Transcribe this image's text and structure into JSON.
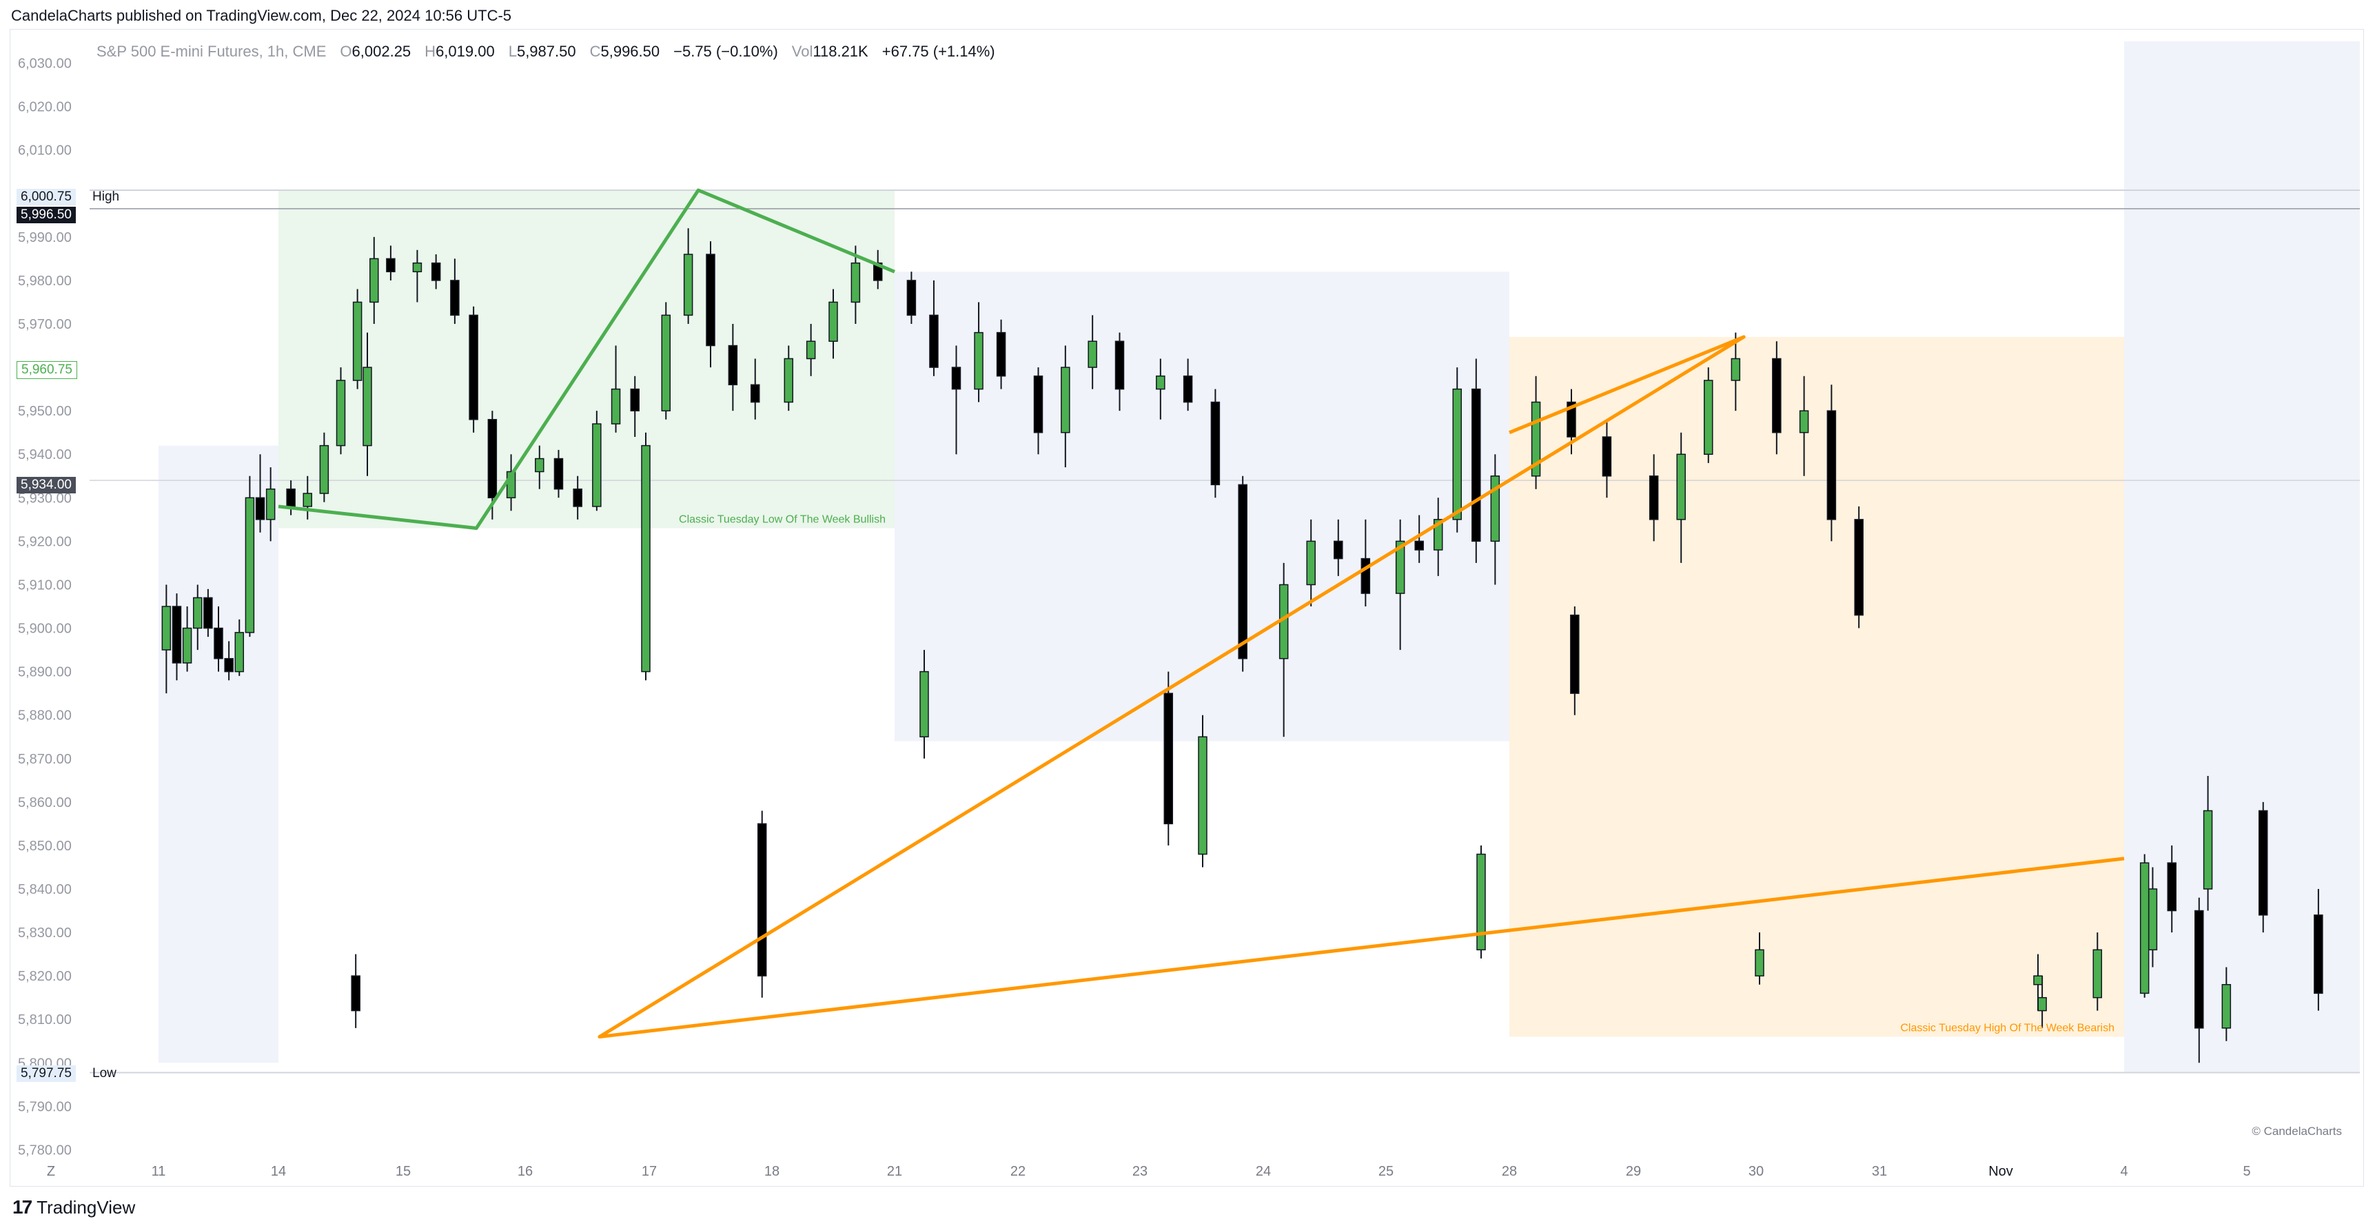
{
  "header": {
    "publisher_line": "CandelaCharts published on TradingView.com, Dec 22, 2024 10:56 UTC-5"
  },
  "legend": {
    "symbol": "S&P 500 E-mini Futures, 1h, CME",
    "o_label": "O",
    "o_value": "6,002.25",
    "h_label": "H",
    "h_value": "6,019.00",
    "l_label": "L",
    "l_value": "5,987.50",
    "c_label": "C",
    "c_value": "5,996.50",
    "change": "−5.75 (−0.10%)",
    "vol_label": "Vol",
    "vol_value": "118.21K",
    "vol_change": "+67.75 (+1.14%)"
  },
  "levels": {
    "high_value": "6,000.75",
    "high_label": "High",
    "last_value": "5,996.50",
    "green_value": "5,960.75",
    "mid_value": "5,934.00",
    "low_value": "5,797.75",
    "low_label": "Low"
  },
  "annotations": {
    "bullish_label": "Classic Tuesday Low Of The Week Bullish",
    "bearish_label": "Classic Tuesday High Of The Week Bearish",
    "copyright": "© CandelaCharts"
  },
  "footer": {
    "brand": "TradingView",
    "logo_glyph": "17"
  },
  "colors": {
    "up": "#4caf50",
    "down": "#000000",
    "bull_zone": "#4caf50",
    "bear_zone": "#ff9800",
    "neutral_zone": "#f0f3fa"
  },
  "chart_data": {
    "type": "candlestick",
    "title": "S&P 500 E-mini Futures, 1h, CME",
    "y_ticks": [
      "5,780.00",
      "5,790.00",
      "5,800.00",
      "5,810.00",
      "5,820.00",
      "5,830.00",
      "5,840.00",
      "5,850.00",
      "5,860.00",
      "5,870.00",
      "5,880.00",
      "5,890.00",
      "5,900.00",
      "5,910.00",
      "5,920.00",
      "5,930.00",
      "5,940.00",
      "5,950.00",
      "5,960.00",
      "5,970.00",
      "5,980.00",
      "5,990.00",
      "6,000.00",
      "6,010.00",
      "6,020.00",
      "6,030.00"
    ],
    "y_tick_values": [
      5780,
      5790,
      5800,
      5810,
      5820,
      5830,
      5840,
      5850,
      5860,
      5870,
      5880,
      5890,
      5900,
      5910,
      5920,
      5930,
      5940,
      5950,
      5960,
      5970,
      5980,
      5990,
      6000,
      6010,
      6020,
      6030
    ],
    "x_labels": [
      "Z",
      "11",
      "14",
      "15",
      "16",
      "17",
      "18",
      "21",
      "22",
      "23",
      "24",
      "25",
      "28",
      "29",
      "30",
      "31",
      "Nov",
      "4",
      "5"
    ],
    "ylim": [
      5775,
      6035
    ],
    "session_boxes": [
      {
        "kind": "neutral",
        "from_day": "11",
        "to_day": "14",
        "low": 5800,
        "high": 5942
      },
      {
        "kind": "bullish",
        "from_day": "14",
        "to_day": "21",
        "low": 5923,
        "high": 6000.75
      },
      {
        "kind": "neutral",
        "from_day": "21",
        "to_day": "28",
        "low": 5874,
        "high": 5982
      },
      {
        "kind": "bearish",
        "from_day": "28",
        "to_day": "4",
        "low": 5806,
        "high": 5967
      },
      {
        "kind": "neutral",
        "from_day": "4",
        "to_day": "end",
        "low": 5797.75,
        "high": 6035
      }
    ],
    "bullish_pattern": [
      [
        "14",
        5928
      ],
      [
        "15.6",
        5923
      ],
      [
        "17.4",
        6000.75
      ],
      [
        "21",
        5982
      ]
    ],
    "bearish_pattern": [
      [
        "28",
        5945
      ],
      [
        "29.9",
        5967
      ],
      [
        "31.7",
        5806
      ],
      [
        "4",
        5847
      ]
    ],
    "candles": [
      [
        "11",
        5895,
        5910,
        5885,
        5905
      ],
      [
        "11",
        5905,
        5908,
        5888,
        5892
      ],
      [
        "11",
        5892,
        5905,
        5890,
        5900
      ],
      [
        "11",
        5900,
        5910,
        5895,
        5907
      ],
      [
        "11",
        5907,
        5909,
        5898,
        5900
      ],
      [
        "11",
        5900,
        5905,
        5890,
        5893
      ],
      [
        "11",
        5893,
        5897,
        5888,
        5890
      ],
      [
        "11",
        5890,
        5902,
        5889,
        5899
      ],
      [
        "11",
        5899,
        5935,
        5898,
        5930
      ],
      [
        "11",
        5930,
        5940,
        5922,
        5925
      ],
      [
        "11",
        5925,
        5937,
        5920,
        5932
      ],
      [
        "14",
        5932,
        5934,
        5926,
        5928
      ],
      [
        "14",
        5928,
        5935,
        5925,
        5931
      ],
      [
        "14",
        5931,
        5945,
        5929,
        5942
      ],
      [
        "14",
        5942,
        5960,
        5940,
        5957
      ],
      [
        "14",
        5957,
        5978,
        5955,
        5975
      ],
      [
        "14",
        5975,
        5990,
        5970,
        5985
      ],
      [
        "14",
        5985,
        5988,
        5980,
        5982
      ],
      [
        "15",
        5982,
        5987,
        5975,
        5984
      ],
      [
        "15",
        5984,
        5986,
        5978,
        5980
      ],
      [
        "15",
        5980,
        5985,
        5970,
        5972
      ],
      [
        "15",
        5972,
        5974,
        5945,
        5948
      ],
      [
        "15",
        5948,
        5950,
        5925,
        5930
      ],
      [
        "15",
        5930,
        5940,
        5927,
        5936
      ],
      [
        "16",
        5936,
        5942,
        5932,
        5939
      ],
      [
        "16",
        5939,
        5941,
        5930,
        5932
      ],
      [
        "16",
        5932,
        5935,
        5925,
        5928
      ],
      [
        "16",
        5928,
        5950,
        5927,
        5947
      ],
      [
        "16",
        5947,
        5965,
        5945,
        5955
      ],
      [
        "16",
        5955,
        5958,
        5944,
        5950
      ],
      [
        "17",
        5950,
        5975,
        5948,
        5972
      ],
      [
        "17",
        5972,
        5992,
        5970,
        5986
      ],
      [
        "17",
        5986,
        5989,
        5960,
        5965
      ],
      [
        "17",
        5965,
        5970,
        5950,
        5956
      ],
      [
        "17",
        5956,
        5962,
        5948,
        5952
      ],
      [
        "18",
        5952,
        5965,
        5950,
        5962
      ],
      [
        "18",
        5962,
        5970,
        5958,
        5966
      ],
      [
        "18",
        5966,
        5978,
        5962,
        5975
      ],
      [
        "18",
        5975,
        5988,
        5970,
        5984
      ],
      [
        "18",
        5984,
        5987,
        5978,
        5980
      ],
      [
        "21",
        5980,
        5982,
        5970,
        5972
      ],
      [
        "21",
        5972,
        5980,
        5958,
        5960
      ],
      [
        "21",
        5960,
        5965,
        5940,
        5955
      ],
      [
        "21",
        5955,
        5975,
        5952,
        5968
      ],
      [
        "21",
        5968,
        5971,
        5955,
        5958
      ],
      [
        "22",
        5958,
        5960,
        5940,
        5945
      ],
      [
        "22",
        5945,
        5965,
        5937,
        5960
      ],
      [
        "22",
        5960,
        5972,
        5955,
        5966
      ],
      [
        "22",
        5966,
        5968,
        5950,
        5955
      ],
      [
        "23",
        5955,
        5962,
        5948,
        5958
      ],
      [
        "23",
        5958,
        5962,
        5950,
        5952
      ],
      [
        "23",
        5952,
        5955,
        5930,
        5933
      ],
      [
        "23",
        5933,
        5935,
        5890,
        5893
      ],
      [
        "24",
        5893,
        5915,
        5875,
        5910
      ],
      [
        "24",
        5910,
        5925,
        5905,
        5920
      ],
      [
        "24",
        5920,
        5925,
        5912,
        5916
      ],
      [
        "24",
        5916,
        5925,
        5905,
        5908
      ],
      [
        "25",
        5908,
        5925,
        5895,
        5920
      ],
      [
        "25",
        5920,
        5926,
        5915,
        5918
      ],
      [
        "25",
        5918,
        5930,
        5912,
        5925
      ],
      [
        "25",
        5925,
        5960,
        5922,
        5955
      ],
      [
        "25",
        5955,
        5962,
        5915,
        5920
      ],
      [
        "25",
        5920,
        5940,
        5910,
        5935
      ],
      [
        "28",
        5935,
        5958,
        5932,
        5952
      ],
      [
        "28",
        5952,
        5955,
        5940,
        5944
      ],
      [
        "28",
        5944,
        5948,
        5930,
        5935
      ],
      [
        "29",
        5935,
        5940,
        5920,
        5925
      ],
      [
        "29",
        5925,
        5945,
        5915,
        5940
      ],
      [
        "29",
        5940,
        5960,
        5938,
        5957
      ],
      [
        "29",
        5957,
        5968,
        5950,
        5962
      ],
      [
        "30",
        5962,
        5966,
        5940,
        5945
      ],
      [
        "30",
        5945,
        5958,
        5935,
        5950
      ],
      [
        "30",
        5950,
        5956,
        5920,
        5925
      ],
      [
        "30",
        5925,
        5928,
        5900,
        5903
      ],
      [
        "31",
        5903,
        5905,
        5880,
        5885
      ],
      [
        "31",
        5885,
        5890,
        5850,
        5855
      ],
      [
        "31",
        5855,
        5858,
        5815,
        5820
      ],
      [
        "31",
        5820,
        5825,
        5808,
        5812
      ],
      [
        "Nov",
        5812,
        5820,
        5808,
        5815
      ],
      [
        "Nov",
        5815,
        5830,
        5812,
        5826
      ],
      [
        "Nov",
        5826,
        5845,
        5822,
        5840
      ],
      [
        "Nov",
        5840,
        5866,
        5835,
        5858
      ],
      [
        "Nov",
        5858,
        5860,
        5830,
        5834
      ],
      [
        "Nov",
        5834,
        5840,
        5812,
        5816
      ],
      [
        "4",
        5816,
        5848,
        5815,
        5846
      ],
      [
        "4",
        5846,
        5850,
        5830,
        5835
      ],
      [
        "4",
        5835,
        5838,
        5800,
        5808
      ],
      [
        "4",
        5808,
        5822,
        5805,
        5818
      ],
      [
        "5",
        5818,
        5825,
        5812,
        5820
      ],
      [
        "5",
        5820,
        5830,
        5818,
        5826
      ],
      [
        "5",
        5826,
        5850,
        5824,
        5848
      ],
      [
        "5",
        5848,
        5880,
        5845,
        5875
      ],
      [
        "5",
        5875,
        5895,
        5870,
        5890
      ],
      [
        "5",
        5890,
        5945,
        5888,
        5942
      ],
      [
        "5",
        5942,
        5968,
        5935,
        5960
      ]
    ]
  }
}
